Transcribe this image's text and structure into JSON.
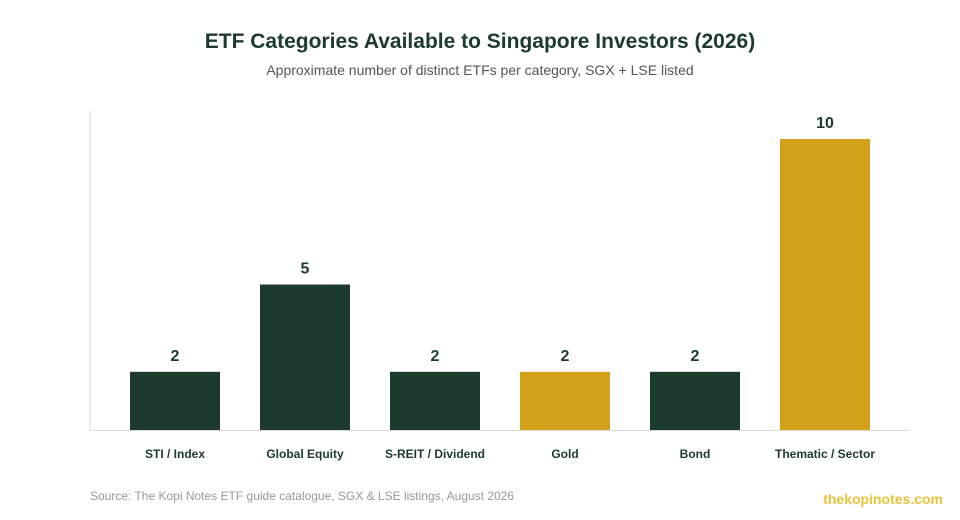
{
  "chart_data": {
    "type": "bar",
    "title": "ETF Categories Available to Singapore Investors (2026)",
    "subtitle": "Approximate number of distinct ETFs per category, SGX + LSE listed",
    "categories": [
      "STI / Index",
      "Global Equity",
      "S-REIT / Dividend",
      "Gold",
      "Bond",
      "Thematic / Sector"
    ],
    "values": [
      2,
      5,
      2,
      2,
      2,
      10
    ],
    "data_labels": [
      "2",
      "5",
      "2",
      "2",
      "2",
      "10"
    ],
    "bar_colors": [
      "#1c3b2c",
      "#1c3b2c",
      "#1c3b2c",
      "#d4a11a",
      "#1c3b2c",
      "#d4a11a"
    ],
    "xlabel": "",
    "ylabel": "",
    "ylim": [
      0,
      10
    ],
    "grid": false,
    "legend": "none"
  },
  "footer": {
    "source": "Source: The Kopi Notes ETF guide catalogue, SGX & LSE listings, August 2026",
    "brand": "thekopinotes.com"
  },
  "colors": {
    "primary": "#1c3b2c",
    "accent": "#d4a11a",
    "brand_text": "#e8c33a",
    "axis": "#dddddd"
  }
}
